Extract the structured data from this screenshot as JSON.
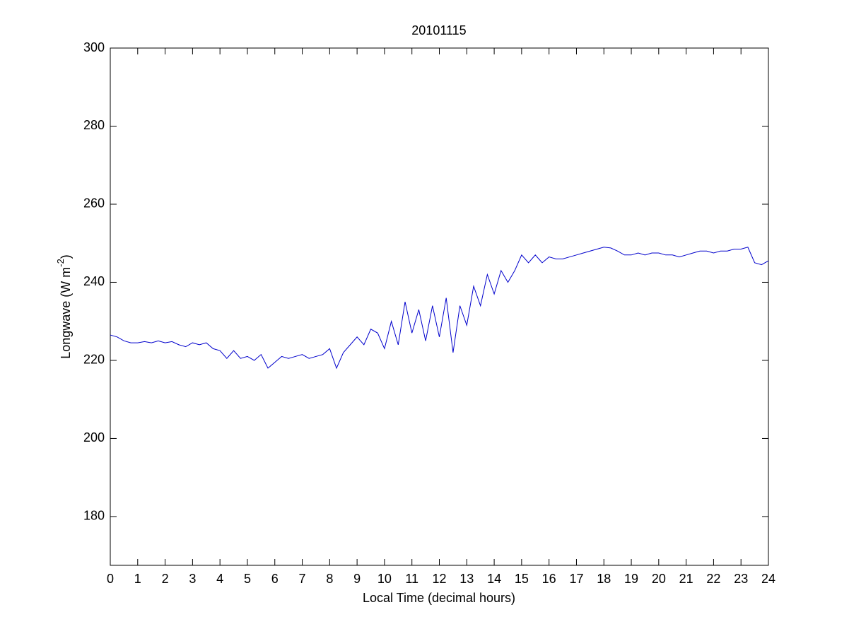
{
  "chart_data": {
    "type": "line",
    "title": "20101115",
    "xlabel": "Local Time (decimal hours)",
    "ylabel": {
      "text": "Longwave (W m",
      "superscript": "-2",
      "suffix": ")"
    },
    "xlim": [
      0,
      24
    ],
    "ylim": [
      167.5,
      300
    ],
    "xticks": [
      0,
      1,
      2,
      3,
      4,
      5,
      6,
      7,
      8,
      9,
      10,
      11,
      12,
      13,
      14,
      15,
      16,
      17,
      18,
      19,
      20,
      21,
      22,
      23,
      24
    ],
    "yticks": [
      180,
      200,
      220,
      240,
      260,
      280,
      300
    ],
    "grid": false,
    "x": [
      0,
      0.25,
      0.5,
      0.75,
      1,
      1.25,
      1.5,
      1.75,
      2,
      2.25,
      2.5,
      2.75,
      3,
      3.25,
      3.5,
      3.75,
      4,
      4.25,
      4.5,
      4.75,
      5,
      5.25,
      5.5,
      5.75,
      6,
      6.25,
      6.5,
      6.75,
      7,
      7.25,
      7.5,
      7.75,
      8,
      8.25,
      8.5,
      8.75,
      9,
      9.25,
      9.5,
      9.75,
      10,
      10.25,
      10.5,
      10.75,
      11,
      11.25,
      11.5,
      11.75,
      12,
      12.25,
      12.5,
      12.75,
      13,
      13.25,
      13.5,
      13.75,
      14,
      14.25,
      14.5,
      14.75,
      15,
      15.25,
      15.5,
      15.75,
      16,
      16.25,
      16.5,
      16.75,
      17,
      17.25,
      17.5,
      17.75,
      18,
      18.25,
      18.5,
      18.75,
      19,
      19.25,
      19.5,
      19.75,
      20,
      20.25,
      20.5,
      20.75,
      21,
      21.25,
      21.5,
      21.75,
      22,
      22.25,
      22.5,
      22.75,
      23,
      23.25,
      23.5,
      23.75,
      24
    ],
    "series": [
      {
        "color": "#0000cc",
        "values": [
          226.5,
          226,
          225,
          224.5,
          224.5,
          224.8,
          224.5,
          225,
          224.5,
          224.8,
          224,
          223.5,
          224.5,
          224,
          224.5,
          223,
          222.5,
          220.5,
          222.5,
          220.5,
          221,
          220,
          221.5,
          218,
          219.5,
          221,
          220.5,
          221,
          221.5,
          220.5,
          221,
          221.5,
          223,
          218,
          222,
          224,
          226,
          224,
          228,
          227,
          223,
          230,
          224,
          235,
          227,
          233,
          225,
          234,
          226,
          236,
          222,
          234,
          229,
          239,
          234,
          242,
          237,
          243,
          240,
          243,
          247,
          245,
          247,
          245,
          246.5,
          246,
          246,
          246.5,
          247,
          247.5,
          248,
          248.5,
          249,
          248.8,
          248,
          247,
          247,
          247.5,
          247,
          247.5,
          247.5,
          247,
          247,
          246.5,
          247,
          247.5,
          248,
          248,
          247.5,
          248,
          248,
          248.5,
          248.5,
          249,
          245,
          244.5,
          245.5
        ]
      }
    ]
  }
}
